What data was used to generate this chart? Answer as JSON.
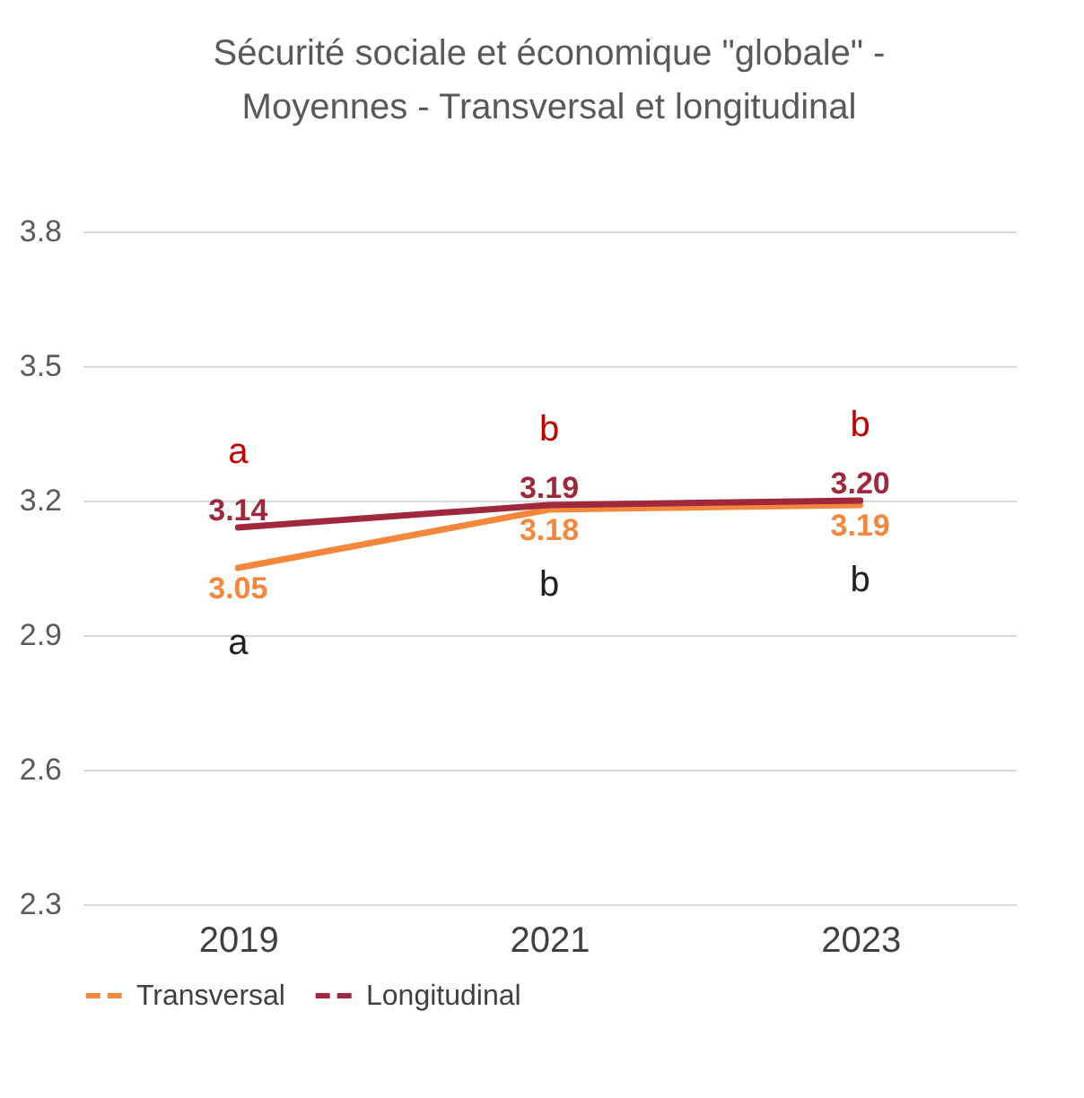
{
  "chart_data": {
    "type": "line",
    "title": "Sécurité sociale et économique \"globale\" - Moyennes - Transversal et longitudinal",
    "categories": [
      "2019",
      "2021",
      "2023"
    ],
    "series": [
      {
        "name": "Transversal",
        "color": "#f4873c",
        "values": [
          3.05,
          3.18,
          3.19
        ],
        "value_labels": [
          "3.05",
          "3.18",
          "3.19"
        ]
      },
      {
        "name": "Longitudinal",
        "color": "#a0283c",
        "values": [
          3.14,
          3.19,
          3.2
        ],
        "value_labels": [
          "3.14",
          "3.19",
          "3.20"
        ]
      }
    ],
    "ylim": [
      2.3,
      3.8
    ],
    "yticks": [
      2.3,
      2.6,
      2.9,
      3.2,
      3.5,
      3.8
    ],
    "grid": "y",
    "legend": "bottom",
    "marker": "none",
    "line_style": "solid",
    "annotations": [
      "a",
      "a",
      "b",
      "b",
      "b",
      "b"
    ]
  }
}
